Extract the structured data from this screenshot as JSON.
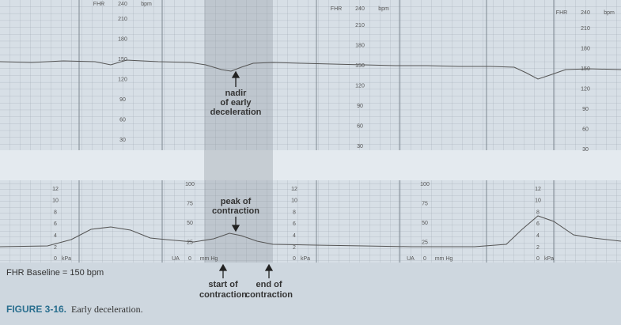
{
  "fhr_scales": [
    {
      "label": "FHR",
      "max": "240",
      "unit": "bpm",
      "ticks": [
        "210",
        "180",
        "150",
        "120",
        "90",
        "60",
        "30"
      ]
    },
    {
      "label": "FHR",
      "max": "240",
      "unit": "bpm",
      "ticks": [
        "210",
        "180",
        "150",
        "120",
        "90",
        "60",
        "30"
      ]
    },
    {
      "label": "FHR",
      "max": "240",
      "unit": "bpm",
      "ticks": [
        "210",
        "180",
        "150",
        "120",
        "90",
        "60",
        "30"
      ]
    }
  ],
  "kpa_scales": [
    {
      "ticks": [
        "12",
        "10",
        "8",
        "6",
        "4",
        "2"
      ],
      "zero": "0",
      "unit": "kPa"
    },
    {
      "ticks": [
        "12",
        "10",
        "8",
        "6",
        "4",
        "2"
      ],
      "zero": "0",
      "unit": "kPa"
    },
    {
      "ticks": [
        "12",
        "10",
        "8",
        "6",
        "4",
        "2"
      ],
      "zero": "0",
      "unit": "kPa"
    }
  ],
  "mmhg_scales": [
    {
      "ticks": [
        "100",
        "75",
        "50",
        "25"
      ],
      "label": "UA",
      "zero": "0",
      "unit": "mm Hg"
    },
    {
      "ticks": [
        "100",
        "75",
        "50",
        "25"
      ],
      "label": "UA",
      "zero": "0",
      "unit": "mm Hg"
    }
  ],
  "annotations": {
    "nadir": [
      "nadir",
      "of early",
      "deceleration"
    ],
    "peak": [
      "peak of",
      "contraction"
    ],
    "start": [
      "start of",
      "contraction"
    ],
    "end": [
      "end of",
      "contraction"
    ]
  },
  "baseline_note": "FHR Baseline = 150 bpm",
  "caption": {
    "label": "FIGURE 3-16.",
    "text": "Early deceleration."
  }
}
